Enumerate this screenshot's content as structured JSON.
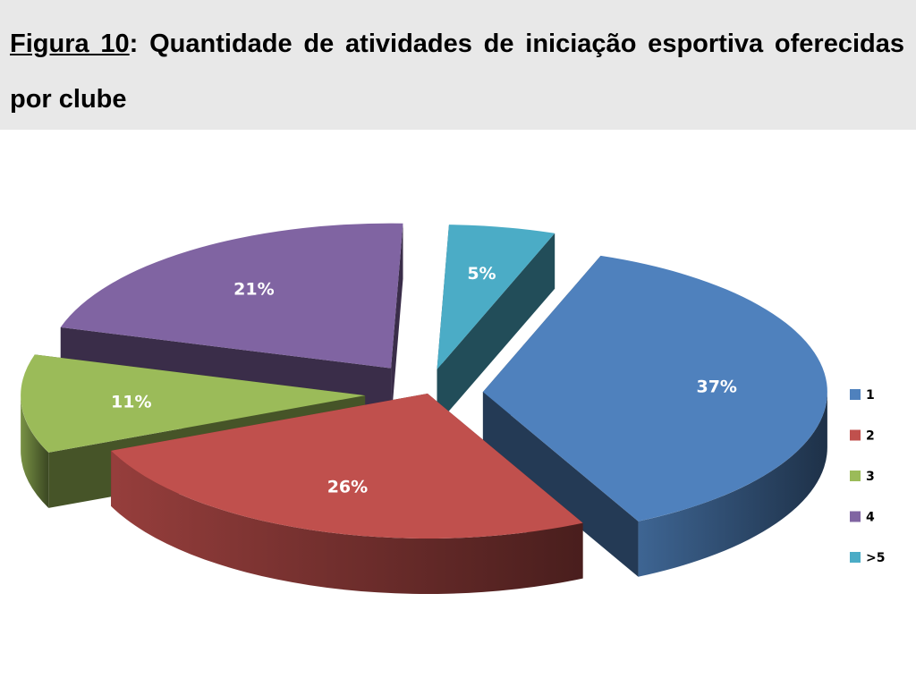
{
  "header": {
    "figure_label": "Figura 10",
    "separator": ":",
    "title_text": " Quantidade de atividades de iniciação esportiva oferecidas por clube"
  },
  "chart_data": {
    "type": "pie",
    "exploded": true,
    "three_d": true,
    "labels": [
      "1",
      "2",
      "3",
      "4",
      ">5"
    ],
    "values": [
      37,
      26,
      11,
      21,
      5
    ],
    "data_labels": [
      "37%",
      "26%",
      "11%",
      "21%",
      "5%"
    ],
    "colors": [
      "#4f81bd",
      "#c0504d",
      "#9bbb59",
      "#8064a2",
      "#4bacc6"
    ],
    "legend_position": "right",
    "title": ""
  }
}
